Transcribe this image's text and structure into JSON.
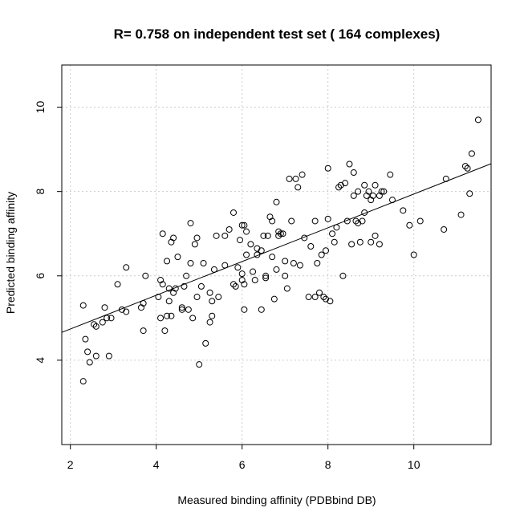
{
  "chart_data": {
    "type": "scatter",
    "title": "R= 0.758 on independent test set ( 164  complexes)",
    "xlabel": "Measured binding affinity (PDBbind DB)",
    "ylabel": "Predicted binding affinity",
    "xlim": [
      1.8,
      11.8
    ],
    "ylim": [
      2.0,
      11.0
    ],
    "xticks": [
      2,
      4,
      6,
      8,
      10
    ],
    "yticks": [
      4,
      6,
      8,
      10
    ],
    "grid": true,
    "regression_line": {
      "x": [
        1.8,
        11.8
      ],
      "y": [
        4.66,
        8.66
      ]
    },
    "points": [
      [
        2.3,
        3.5
      ],
      [
        2.3,
        5.3
      ],
      [
        2.35,
        4.5
      ],
      [
        2.4,
        4.2
      ],
      [
        2.45,
        3.95
      ],
      [
        2.55,
        4.85
      ],
      [
        2.6,
        4.8
      ],
      [
        2.6,
        4.1
      ],
      [
        2.75,
        4.9
      ],
      [
        2.8,
        5.25
      ],
      [
        2.85,
        5.0
      ],
      [
        2.9,
        4.1
      ],
      [
        2.95,
        5.0
      ],
      [
        3.1,
        5.8
      ],
      [
        3.2,
        5.2
      ],
      [
        3.3,
        6.2
      ],
      [
        3.3,
        5.15
      ],
      [
        3.65,
        5.25
      ],
      [
        3.7,
        5.35
      ],
      [
        3.7,
        4.7
      ],
      [
        3.75,
        6.0
      ],
      [
        4.05,
        5.5
      ],
      [
        4.1,
        5.0
      ],
      [
        4.1,
        5.9
      ],
      [
        4.15,
        5.8
      ],
      [
        4.15,
        7.0
      ],
      [
        4.2,
        4.7
      ],
      [
        4.25,
        5.05
      ],
      [
        4.25,
        6.35
      ],
      [
        4.3,
        5.4
      ],
      [
        4.3,
        5.7
      ],
      [
        4.35,
        6.8
      ],
      [
        4.35,
        5.05
      ],
      [
        4.4,
        6.9
      ],
      [
        4.4,
        5.6
      ],
      [
        4.45,
        5.7
      ],
      [
        4.5,
        6.45
      ],
      [
        4.6,
        5.25
      ],
      [
        4.65,
        5.75
      ],
      [
        4.7,
        6.0
      ],
      [
        4.75,
        5.2
      ],
      [
        4.8,
        7.25
      ],
      [
        4.8,
        6.3
      ],
      [
        4.85,
        5.0
      ],
      [
        4.9,
        6.75
      ],
      [
        4.95,
        6.9
      ],
      [
        4.95,
        5.5
      ],
      [
        5.0,
        3.9
      ],
      [
        5.05,
        5.75
      ],
      [
        5.1,
        6.3
      ],
      [
        5.15,
        4.4
      ],
      [
        5.25,
        5.6
      ],
      [
        5.25,
        4.9
      ],
      [
        5.3,
        5.4
      ],
      [
        5.3,
        5.05
      ],
      [
        5.35,
        6.15
      ],
      [
        5.4,
        6.95
      ],
      [
        5.45,
        5.5
      ],
      [
        5.6,
        6.95
      ],
      [
        5.7,
        7.1
      ],
      [
        5.8,
        5.8
      ],
      [
        5.8,
        7.5
      ],
      [
        5.85,
        5.75
      ],
      [
        5.9,
        6.2
      ],
      [
        5.95,
        6.85
      ],
      [
        6.0,
        5.9
      ],
      [
        6.0,
        6.05
      ],
      [
        6.0,
        7.2
      ],
      [
        6.05,
        5.2
      ],
      [
        6.05,
        5.8
      ],
      [
        6.05,
        7.2
      ],
      [
        6.1,
        6.5
      ],
      [
        6.1,
        7.05
      ],
      [
        6.2,
        6.75
      ],
      [
        6.25,
        6.1
      ],
      [
        6.3,
        5.9
      ],
      [
        6.35,
        6.65
      ],
      [
        6.35,
        6.5
      ],
      [
        6.45,
        5.2
      ],
      [
        6.45,
        6.6
      ],
      [
        6.5,
        6.95
      ],
      [
        6.55,
        6.0
      ],
      [
        6.55,
        5.95
      ],
      [
        6.6,
        6.95
      ],
      [
        6.65,
        7.4
      ],
      [
        6.7,
        7.3
      ],
      [
        6.7,
        6.45
      ],
      [
        6.75,
        5.45
      ],
      [
        6.8,
        7.75
      ],
      [
        6.8,
        6.15
      ],
      [
        6.85,
        7.05
      ],
      [
        6.9,
        7.0
      ],
      [
        6.95,
        7.0
      ],
      [
        7.0,
        6.0
      ],
      [
        7.05,
        5.7
      ],
      [
        7.1,
        8.3
      ],
      [
        7.15,
        7.3
      ],
      [
        7.2,
        6.3
      ],
      [
        7.25,
        8.3
      ],
      [
        7.3,
        8.1
      ],
      [
        7.35,
        6.25
      ],
      [
        7.4,
        8.4
      ],
      [
        7.45,
        6.9
      ],
      [
        7.55,
        5.5
      ],
      [
        7.6,
        6.7
      ],
      [
        7.7,
        7.3
      ],
      [
        7.7,
        5.5
      ],
      [
        7.75,
        6.3
      ],
      [
        7.8,
        5.6
      ],
      [
        7.85,
        6.5
      ],
      [
        7.9,
        5.5
      ],
      [
        7.95,
        6.6
      ],
      [
        8.0,
        8.55
      ],
      [
        8.0,
        7.35
      ],
      [
        8.05,
        5.4
      ],
      [
        8.1,
        7.0
      ],
      [
        8.15,
        6.8
      ],
      [
        8.2,
        7.15
      ],
      [
        8.25,
        8.1
      ],
      [
        8.3,
        8.15
      ],
      [
        8.35,
        6.0
      ],
      [
        8.4,
        8.2
      ],
      [
        8.45,
        7.3
      ],
      [
        8.5,
        8.65
      ],
      [
        8.55,
        6.75
      ],
      [
        8.6,
        7.9
      ],
      [
        8.65,
        7.3
      ],
      [
        8.7,
        7.25
      ],
      [
        8.7,
        8.0
      ],
      [
        8.75,
        6.8
      ],
      [
        8.8,
        7.3
      ],
      [
        8.85,
        7.5
      ],
      [
        8.85,
        8.15
      ],
      [
        8.9,
        7.9
      ],
      [
        9.0,
        7.8
      ],
      [
        9.0,
        6.8
      ],
      [
        9.05,
        7.9
      ],
      [
        9.1,
        8.15
      ],
      [
        9.2,
        7.9
      ],
      [
        9.2,
        6.75
      ],
      [
        9.25,
        8.0
      ],
      [
        9.3,
        8.0
      ],
      [
        9.45,
        8.4
      ],
      [
        9.5,
        7.8
      ],
      [
        9.75,
        7.55
      ],
      [
        9.9,
        7.2
      ],
      [
        10.0,
        6.5
      ],
      [
        10.15,
        7.3
      ],
      [
        10.7,
        7.1
      ],
      [
        10.75,
        8.3
      ],
      [
        11.1,
        7.45
      ],
      [
        11.2,
        8.6
      ],
      [
        11.3,
        7.95
      ],
      [
        11.35,
        8.9
      ],
      [
        11.5,
        9.7
      ],
      [
        11.25,
        8.55
      ],
      [
        8.95,
        8.0
      ],
      [
        8.6,
        8.45
      ],
      [
        4.6,
        5.2
      ],
      [
        5.6,
        6.25
      ],
      [
        6.85,
        6.95
      ],
      [
        7.0,
        6.35
      ],
      [
        7.95,
        5.45
      ],
      [
        9.1,
        6.95
      ]
    ]
  }
}
